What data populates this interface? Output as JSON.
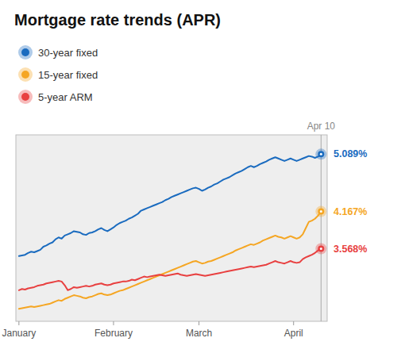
{
  "chart_data": {
    "type": "line",
    "title": "Mortgage rate trends (APR)",
    "x": [
      0,
      1,
      2,
      3,
      4,
      5,
      6,
      7,
      8,
      9,
      10,
      11,
      12,
      13,
      14,
      15,
      16,
      17,
      18,
      19,
      20,
      21,
      22,
      23,
      24,
      25,
      26,
      27,
      28,
      29,
      30,
      31,
      32,
      33,
      34,
      35,
      36,
      37,
      38,
      39,
      40,
      41,
      42,
      43,
      44,
      45,
      46,
      47,
      48,
      49,
      50,
      51,
      52,
      53,
      54,
      55,
      56,
      57,
      58,
      59,
      60,
      61,
      62,
      63,
      64,
      65,
      66,
      67,
      68,
      69,
      70,
      71,
      72,
      73,
      74,
      75,
      76,
      77,
      78,
      79,
      80,
      81,
      82,
      83,
      84,
      85,
      86,
      87,
      88,
      89,
      90,
      91,
      92,
      93,
      94,
      95,
      96,
      97,
      98,
      99
    ],
    "xlim": [
      -1,
      101
    ],
    "xticks": [
      {
        "value": 0,
        "label": "January"
      },
      {
        "value": 31,
        "label": "February"
      },
      {
        "value": 59,
        "label": "March"
      },
      {
        "value": 90,
        "label": "April"
      }
    ],
    "ylim": [
      2.4,
      5.4
    ],
    "tick_labels": "x",
    "grid": false,
    "legend": "top",
    "data_labels": true,
    "annotations": [
      {
        "x": 99,
        "label": "Apr 10"
      }
    ],
    "series": [
      {
        "name": "30-year fixed",
        "color": "#1a6bbf",
        "values": [
          3.45,
          3.46,
          3.47,
          3.5,
          3.52,
          3.51,
          3.53,
          3.55,
          3.6,
          3.62,
          3.65,
          3.67,
          3.72,
          3.75,
          3.73,
          3.78,
          3.8,
          3.82,
          3.85,
          3.84,
          3.83,
          3.8,
          3.79,
          3.82,
          3.83,
          3.85,
          3.88,
          3.9,
          3.87,
          3.85,
          3.88,
          3.91,
          3.95,
          3.98,
          4.0,
          4.02,
          4.05,
          4.07,
          4.1,
          4.13,
          4.18,
          4.2,
          4.22,
          4.24,
          4.26,
          4.28,
          4.3,
          4.32,
          4.35,
          4.37,
          4.4,
          4.42,
          4.44,
          4.46,
          4.48,
          4.5,
          4.52,
          4.54,
          4.55,
          4.53,
          4.5,
          4.52,
          4.55,
          4.57,
          4.6,
          4.62,
          4.65,
          4.68,
          4.7,
          4.72,
          4.75,
          4.78,
          4.8,
          4.82,
          4.85,
          4.88,
          4.9,
          4.88,
          4.9,
          4.93,
          4.95,
          4.97,
          5.0,
          5.02,
          5.04,
          5.02,
          5.0,
          4.98,
          5.0,
          5.02,
          5.0,
          4.98,
          5.0,
          5.02,
          5.04,
          5.06,
          5.05,
          5.03,
          5.05,
          5.089
        ],
        "value_labels": [
          null,
          null,
          null,
          null,
          null,
          null,
          null,
          null,
          null,
          null,
          null,
          null,
          null,
          null,
          null,
          null,
          null,
          null,
          null,
          null,
          null,
          null,
          null,
          null,
          null,
          null,
          null,
          null,
          null,
          null,
          null,
          null,
          null,
          null,
          null,
          null,
          null,
          null,
          null,
          null,
          null,
          null,
          null,
          null,
          null,
          null,
          null,
          null,
          null,
          null,
          null,
          null,
          null,
          null,
          null,
          null,
          null,
          null,
          null,
          null,
          null,
          null,
          null,
          null,
          null,
          null,
          null,
          null,
          null,
          null,
          null,
          null,
          null,
          null,
          null,
          null,
          null,
          null,
          null,
          null,
          null,
          null,
          null,
          null,
          null,
          null,
          null,
          null,
          null,
          null,
          null,
          null,
          null,
          null,
          null,
          null,
          null,
          null,
          null,
          "5.089%"
        ]
      },
      {
        "name": "15-year fixed",
        "color": "#f5a623",
        "values": [
          2.6,
          2.61,
          2.62,
          2.63,
          2.64,
          2.63,
          2.64,
          2.65,
          2.66,
          2.67,
          2.68,
          2.7,
          2.72,
          2.74,
          2.73,
          2.76,
          2.78,
          2.8,
          2.82,
          2.81,
          2.8,
          2.78,
          2.77,
          2.79,
          2.8,
          2.82,
          2.84,
          2.85,
          2.83,
          2.82,
          2.83,
          2.85,
          2.87,
          2.89,
          2.9,
          2.92,
          2.94,
          2.96,
          2.98,
          3.0,
          3.02,
          3.04,
          3.06,
          3.08,
          3.1,
          3.12,
          3.14,
          3.16,
          3.18,
          3.2,
          3.22,
          3.24,
          3.26,
          3.28,
          3.3,
          3.32,
          3.34,
          3.36,
          3.37,
          3.35,
          3.33,
          3.34,
          3.36,
          3.37,
          3.39,
          3.41,
          3.43,
          3.45,
          3.47,
          3.49,
          3.51,
          3.54,
          3.56,
          3.58,
          3.6,
          3.62,
          3.64,
          3.63,
          3.65,
          3.67,
          3.7,
          3.72,
          3.74,
          3.76,
          3.78,
          3.76,
          3.75,
          3.73,
          3.75,
          3.77,
          3.75,
          3.73,
          3.75,
          3.8,
          3.9,
          4.0,
          4.02,
          4.05,
          4.1,
          4.167
        ],
        "value_labels": [
          null,
          null,
          null,
          null,
          null,
          null,
          null,
          null,
          null,
          null,
          null,
          null,
          null,
          null,
          null,
          null,
          null,
          null,
          null,
          null,
          null,
          null,
          null,
          null,
          null,
          null,
          null,
          null,
          null,
          null,
          null,
          null,
          null,
          null,
          null,
          null,
          null,
          null,
          null,
          null,
          null,
          null,
          null,
          null,
          null,
          null,
          null,
          null,
          null,
          null,
          null,
          null,
          null,
          null,
          null,
          null,
          null,
          null,
          null,
          null,
          null,
          null,
          null,
          null,
          null,
          null,
          null,
          null,
          null,
          null,
          null,
          null,
          null,
          null,
          null,
          null,
          null,
          null,
          null,
          null,
          null,
          null,
          null,
          null,
          null,
          null,
          null,
          null,
          null,
          null,
          null,
          null,
          null,
          null,
          null,
          null,
          null,
          null,
          null,
          "4.167%"
        ]
      },
      {
        "name": "5-year ARM",
        "color": "#e84040",
        "values": [
          2.9,
          2.92,
          2.91,
          2.93,
          2.94,
          2.95,
          2.97,
          2.98,
          2.99,
          3.01,
          3.02,
          3.03,
          3.04,
          3.05,
          3.04,
          2.98,
          2.9,
          2.92,
          2.95,
          2.94,
          2.95,
          2.96,
          2.97,
          2.96,
          2.97,
          2.99,
          3.0,
          3.01,
          2.99,
          2.98,
          2.99,
          3.01,
          3.02,
          3.03,
          3.04,
          3.04,
          3.05,
          3.07,
          3.06,
          3.08,
          3.1,
          3.12,
          3.11,
          3.12,
          3.13,
          3.14,
          3.15,
          3.14,
          3.13,
          3.14,
          3.15,
          3.16,
          3.17,
          3.15,
          3.14,
          3.13,
          3.14,
          3.15,
          3.16,
          3.15,
          3.14,
          3.13,
          3.14,
          3.15,
          3.16,
          3.17,
          3.18,
          3.19,
          3.2,
          3.21,
          3.22,
          3.23,
          3.24,
          3.25,
          3.26,
          3.27,
          3.28,
          3.27,
          3.28,
          3.29,
          3.3,
          3.31,
          3.33,
          3.35,
          3.37,
          3.35,
          3.34,
          3.33,
          3.35,
          3.37,
          3.35,
          3.34,
          3.35,
          3.4,
          3.43,
          3.45,
          3.47,
          3.5,
          3.54,
          3.568
        ],
        "value_labels": [
          null,
          null,
          null,
          null,
          null,
          null,
          null,
          null,
          null,
          null,
          null,
          null,
          null,
          null,
          null,
          null,
          null,
          null,
          null,
          null,
          null,
          null,
          null,
          null,
          null,
          null,
          null,
          null,
          null,
          null,
          null,
          null,
          null,
          null,
          null,
          null,
          null,
          null,
          null,
          null,
          null,
          null,
          null,
          null,
          null,
          null,
          null,
          null,
          null,
          null,
          null,
          null,
          null,
          null,
          null,
          null,
          null,
          null,
          null,
          null,
          null,
          null,
          null,
          null,
          null,
          null,
          null,
          null,
          null,
          null,
          null,
          null,
          null,
          null,
          null,
          null,
          null,
          null,
          null,
          null,
          null,
          null,
          null,
          null,
          null,
          null,
          null,
          null,
          null,
          null,
          null,
          null,
          null,
          null,
          null,
          null,
          null,
          null,
          null,
          "3.568%"
        ]
      }
    ]
  }
}
